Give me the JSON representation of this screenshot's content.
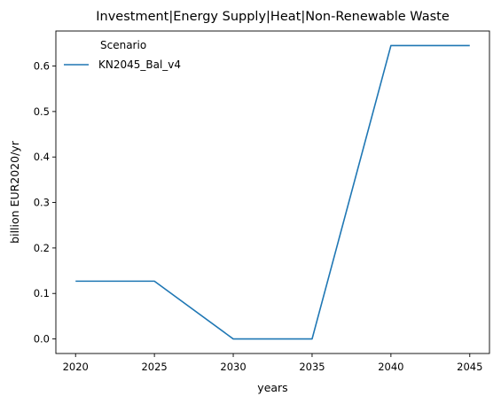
{
  "chart_data": {
    "type": "line",
    "title": "Investment|Energy Supply|Heat|Non-Renewable Waste",
    "xlabel": "years",
    "ylabel": "billion EUR2020/yr",
    "x": [
      2020,
      2025,
      2030,
      2035,
      2040,
      2045
    ],
    "xticks": [
      "2020",
      "2025",
      "2030",
      "2035",
      "2040",
      "2045"
    ],
    "yticks": [
      "0.0",
      "0.1",
      "0.2",
      "0.3",
      "0.4",
      "0.5",
      "0.6"
    ],
    "xlim": [
      2018.75,
      2046.25
    ],
    "ylim": [
      -0.032,
      0.677
    ],
    "grid": false,
    "legend": {
      "title": "Scenario",
      "placement": "top-left"
    },
    "series": [
      {
        "name": "KN2045_Bal_v4",
        "color": "#1f77b4",
        "values": [
          0.127,
          0.127,
          0.0,
          0.0,
          0.645,
          0.645
        ]
      }
    ]
  }
}
